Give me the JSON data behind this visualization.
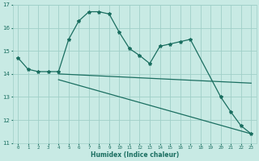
{
  "xlabel": "Humidex (Indice chaleur)",
  "xlim": [
    -0.5,
    23.5
  ],
  "ylim": [
    11,
    17
  ],
  "yticks": [
    11,
    12,
    13,
    14,
    15,
    16,
    17
  ],
  "xticks": [
    0,
    1,
    2,
    3,
    4,
    5,
    6,
    7,
    8,
    9,
    10,
    11,
    12,
    13,
    14,
    15,
    16,
    17,
    18,
    19,
    20,
    21,
    22,
    23
  ],
  "bg_color": "#c8eae4",
  "grid_color": "#a0cfc8",
  "line_color": "#1a6e60",
  "line1_x": [
    0,
    1,
    2,
    3,
    4,
    5,
    6,
    7,
    8,
    9,
    10,
    11,
    12,
    13,
    14,
    15,
    16,
    17,
    20,
    21,
    22,
    23
  ],
  "line1_y": [
    14.7,
    14.2,
    14.1,
    14.1,
    14.1,
    15.5,
    16.3,
    16.7,
    16.7,
    16.6,
    15.8,
    15.1,
    14.8,
    14.45,
    15.2,
    15.3,
    15.4,
    15.5,
    13.0,
    12.35,
    11.75,
    11.4
  ],
  "line2_x": [
    4,
    23
  ],
  "line2_y": [
    14.0,
    13.6
  ],
  "line3_x": [
    4,
    23
  ],
  "line3_y": [
    13.75,
    11.4
  ]
}
